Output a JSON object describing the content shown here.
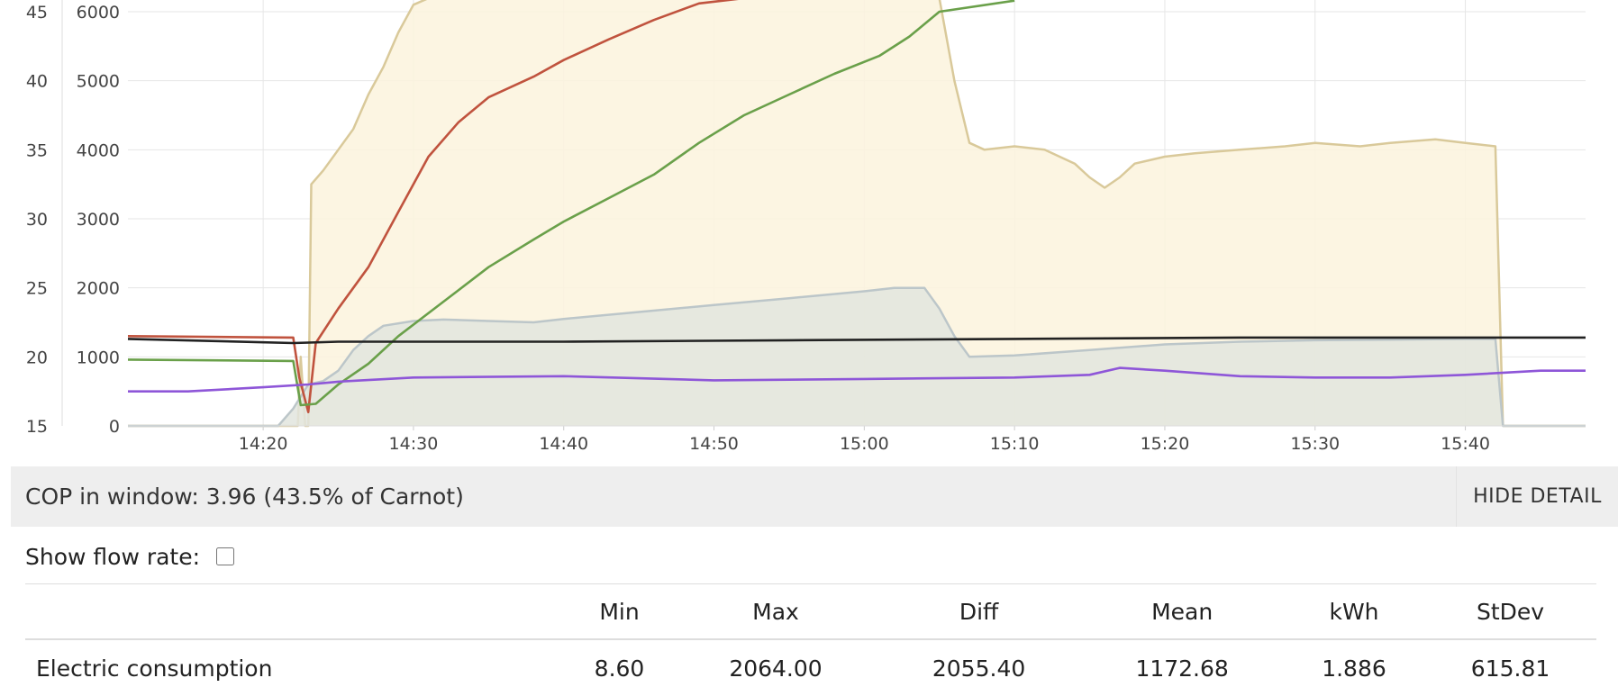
{
  "chart_data": {
    "type": "line",
    "xlabel": "",
    "ylabel": "",
    "x_ticks": [
      "14:20",
      "14:30",
      "14:40",
      "14:50",
      "15:00",
      "15:10",
      "15:20",
      "15:30",
      "15:40"
    ],
    "xlim": [
      "14:11",
      "15:48"
    ],
    "y_left_ticks": [
      "15",
      "20",
      "25",
      "30",
      "35",
      "40",
      "45"
    ],
    "y_left_lim": [
      15,
      45
    ],
    "y_right_ticks": [
      "0",
      "1000",
      "2000",
      "3000",
      "4000",
      "5000",
      "6000"
    ],
    "y_right_lim": [
      0,
      6000
    ],
    "grid": true,
    "series": [
      {
        "axis": "right",
        "style": "area",
        "color": "#d9c99a",
        "fill": "#fbf3dd",
        "points": [
          [
            "14:11",
            0
          ],
          [
            "14:22",
            0
          ],
          [
            "14:22.3",
            0
          ],
          [
            "14:22.5",
            1000
          ],
          [
            "14:22.8",
            0
          ],
          [
            "14:23",
            0
          ],
          [
            "14:23.2",
            3500
          ],
          [
            "14:24",
            3700
          ],
          [
            "14:25",
            4000
          ],
          [
            "14:26",
            4300
          ],
          [
            "14:27",
            4800
          ],
          [
            "14:28",
            5200
          ],
          [
            "14:29",
            5700
          ],
          [
            "14:30",
            6100
          ],
          [
            "14:31",
            6300
          ],
          [
            "15:05",
            6300
          ],
          [
            "15:06",
            5000
          ],
          [
            "15:07",
            4100
          ],
          [
            "15:08",
            4000
          ],
          [
            "15:10",
            4050
          ],
          [
            "15:12",
            4000
          ],
          [
            "15:14",
            3800
          ],
          [
            "15:15",
            3600
          ],
          [
            "15:16",
            3450
          ],
          [
            "15:17",
            3600
          ],
          [
            "15:18",
            3800
          ],
          [
            "15:20",
            3900
          ],
          [
            "15:22",
            3950
          ],
          [
            "15:25",
            4000
          ],
          [
            "15:28",
            4050
          ],
          [
            "15:30",
            4100
          ],
          [
            "15:33",
            4050
          ],
          [
            "15:35",
            4100
          ],
          [
            "15:38",
            4150
          ],
          [
            "15:40",
            4100
          ],
          [
            "15:42",
            4050
          ],
          [
            "15:42.5",
            0
          ],
          [
            "15:48",
            0
          ]
        ]
      },
      {
        "axis": "right",
        "style": "area",
        "color": "#bcc6c9",
        "fill": "#e2e5de",
        "points": [
          [
            "14:11",
            0
          ],
          [
            "14:21",
            0
          ],
          [
            "14:22",
            250
          ],
          [
            "14:23",
            600
          ],
          [
            "14:24",
            650
          ],
          [
            "14:25",
            800
          ],
          [
            "14:26",
            1100
          ],
          [
            "14:27",
            1300
          ],
          [
            "14:28",
            1450
          ],
          [
            "14:30",
            1520
          ],
          [
            "14:32",
            1540
          ],
          [
            "14:35",
            1520
          ],
          [
            "14:38",
            1500
          ],
          [
            "14:40",
            1550
          ],
          [
            "14:45",
            1650
          ],
          [
            "14:50",
            1750
          ],
          [
            "14:55",
            1850
          ],
          [
            "15:00",
            1950
          ],
          [
            "15:02",
            2000
          ],
          [
            "15:04",
            2000
          ],
          [
            "15:05",
            1700
          ],
          [
            "15:06",
            1300
          ],
          [
            "15:07",
            1000
          ],
          [
            "15:10",
            1020
          ],
          [
            "15:15",
            1100
          ],
          [
            "15:20",
            1180
          ],
          [
            "15:25",
            1220
          ],
          [
            "15:30",
            1240
          ],
          [
            "15:35",
            1250
          ],
          [
            "15:40",
            1260
          ],
          [
            "15:42",
            1260
          ],
          [
            "15:42.5",
            0
          ],
          [
            "15:48",
            0
          ]
        ]
      },
      {
        "axis": "left",
        "style": "line",
        "color": "#c0533e",
        "points": [
          [
            "14:11",
            21.5
          ],
          [
            "14:22",
            21.4
          ],
          [
            "14:22.4",
            18.5
          ],
          [
            "14:23",
            16.0
          ],
          [
            "14:23.5",
            21.0
          ],
          [
            "14:25",
            23.5
          ],
          [
            "14:27",
            26.5
          ],
          [
            "14:29",
            30.5
          ],
          [
            "14:31",
            34.5
          ],
          [
            "14:33",
            37.0
          ],
          [
            "14:35",
            38.8
          ],
          [
            "14:38",
            40.3
          ],
          [
            "14:40",
            41.5
          ],
          [
            "14:43",
            43.0
          ],
          [
            "14:46",
            44.4
          ],
          [
            "14:49",
            45.6
          ],
          [
            "14:52",
            46.5
          ]
        ]
      },
      {
        "axis": "left",
        "style": "line",
        "color": "#6aa04a",
        "points": [
          [
            "14:11",
            19.8
          ],
          [
            "14:22",
            19.7
          ],
          [
            "14:22.5",
            16.5
          ],
          [
            "14:23.5",
            16.6
          ],
          [
            "14:25",
            18.0
          ],
          [
            "14:27",
            19.5
          ],
          [
            "14:29",
            21.5
          ],
          [
            "14:32",
            24.0
          ],
          [
            "14:35",
            26.5
          ],
          [
            "14:38",
            28.5
          ],
          [
            "14:40",
            29.8
          ],
          [
            "14:43",
            31.5
          ],
          [
            "14:46",
            33.2
          ],
          [
            "14:49",
            35.5
          ],
          [
            "14:52",
            37.5
          ],
          [
            "14:55",
            39.0
          ],
          [
            "14:58",
            40.5
          ],
          [
            "15:01",
            41.8
          ],
          [
            "15:03",
            43.2
          ],
          [
            "15:05",
            45.0
          ],
          [
            "15:10",
            45.8
          ]
        ]
      },
      {
        "axis": "left",
        "style": "line",
        "color": "#222222",
        "points": [
          [
            "14:11",
            21.3
          ],
          [
            "14:22",
            21.0
          ],
          [
            "14:25",
            21.1
          ],
          [
            "14:40",
            21.1
          ],
          [
            "14:55",
            21.2
          ],
          [
            "15:10",
            21.3
          ],
          [
            "15:25",
            21.4
          ],
          [
            "15:40",
            21.4
          ],
          [
            "15:48",
            21.4
          ]
        ]
      },
      {
        "axis": "left",
        "style": "line",
        "color": "#8e56d8",
        "points": [
          [
            "14:11",
            17.5
          ],
          [
            "14:15",
            17.5
          ],
          [
            "14:20",
            17.8
          ],
          [
            "14:23",
            18.0
          ],
          [
            "14:25",
            18.2
          ],
          [
            "14:30",
            18.5
          ],
          [
            "14:40",
            18.6
          ],
          [
            "14:50",
            18.3
          ],
          [
            "15:00",
            18.4
          ],
          [
            "15:10",
            18.5
          ],
          [
            "15:15",
            18.7
          ],
          [
            "15:17",
            19.2
          ],
          [
            "15:20",
            19.0
          ],
          [
            "15:25",
            18.6
          ],
          [
            "15:30",
            18.5
          ],
          [
            "15:35",
            18.5
          ],
          [
            "15:40",
            18.7
          ],
          [
            "15:45",
            19.0
          ],
          [
            "15:48",
            19.0
          ]
        ]
      }
    ]
  },
  "cop": {
    "text": "COP in window: 3.96 (43.5% of Carnot)",
    "hide_label": "HIDE DETAIL"
  },
  "flow": {
    "label": "Show flow rate:"
  },
  "stats": {
    "headers": [
      "",
      "Min",
      "Max",
      "Diff",
      "Mean",
      "kWh",
      "StDev"
    ],
    "rows": [
      {
        "name": "Electric consumption",
        "min": "8.60",
        "max": "2064.00",
        "diff": "2055.40",
        "mean": "1172.68",
        "kwh": "1.886",
        "stdev": "615.81"
      }
    ]
  }
}
